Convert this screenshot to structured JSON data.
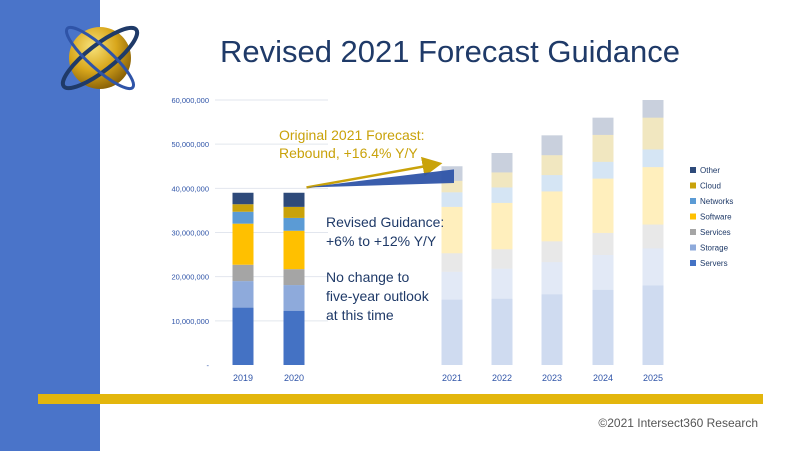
{
  "slide": {
    "title": "Revised 2021 Forecast Guidance",
    "copyright": "©2021 Intersect360 Research"
  },
  "annotations": {
    "original": [
      "Original 2021 Forecast:",
      "Rebound, +16.4% Y/Y"
    ],
    "revised": [
      "Revised Guidance:",
      "+6% to +12% Y/Y"
    ],
    "no_change": [
      "No change to",
      "five-year outlook",
      "at this time"
    ]
  },
  "colors": {
    "sidebar": "#4a74c9",
    "title": "#1f3a68",
    "accent_bar": "#e3b60d",
    "original_arrow": "#c9a20a",
    "revised_arrow": "#2f54a8"
  },
  "chart_data": {
    "type": "bar",
    "stacked": true,
    "categories": [
      "2019",
      "2020",
      "2021",
      "2022",
      "2023",
      "2024",
      "2025"
    ],
    "forecast_faded_from": "2021",
    "ylim": [
      0,
      60000000
    ],
    "yticks": [
      "-",
      "10,000,000",
      "20,000,000",
      "30,000,000",
      "40,000,000",
      "50,000,000",
      "60,000,000"
    ],
    "series": [
      {
        "name": "Servers",
        "color": "#4472c4",
        "values": [
          13000000,
          12300000,
          14800000,
          15000000,
          16000000,
          17000000,
          18000000
        ]
      },
      {
        "name": "Storage",
        "color": "#8eaadb",
        "values": [
          6000000,
          5800000,
          6300000,
          6800000,
          7300000,
          7900000,
          8400000
        ]
      },
      {
        "name": "Services",
        "color": "#a5a5a5",
        "values": [
          3700000,
          3600000,
          4200000,
          4400000,
          4700000,
          5000000,
          5400000
        ]
      },
      {
        "name": "Software",
        "color": "#ffc000",
        "values": [
          9300000,
          8700000,
          10500000,
          10500000,
          11300000,
          12300000,
          13000000
        ]
      },
      {
        "name": "Networks",
        "color": "#5b9bd5",
        "values": [
          2700000,
          2900000,
          3300000,
          3500000,
          3700000,
          3800000,
          4000000
        ]
      },
      {
        "name": "Cloud",
        "color": "#c9a20a",
        "values": [
          1700000,
          2500000,
          2600000,
          3400000,
          4500000,
          6100000,
          7200000
        ]
      },
      {
        "name": "Other",
        "color": "#2e4a7a",
        "values": [
          2600000,
          3200000,
          3300000,
          4400000,
          4500000,
          3900000,
          4000000
        ]
      }
    ],
    "legend_order": [
      "Other",
      "Cloud",
      "Networks",
      "Software",
      "Services",
      "Storage",
      "Servers"
    ],
    "legend_position": "right"
  }
}
